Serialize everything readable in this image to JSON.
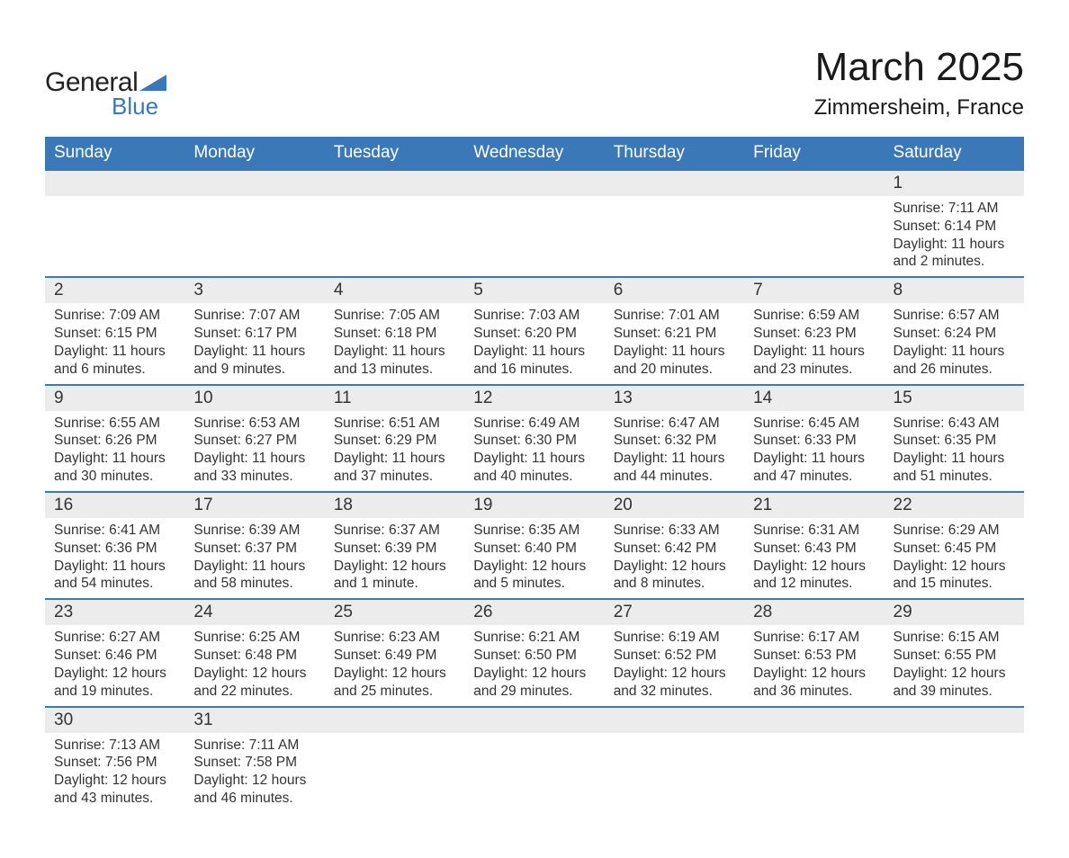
{
  "logo": {
    "text_general": "General",
    "text_blue": "Blue",
    "accent_color": "#3b78b8"
  },
  "header": {
    "title": "March 2025",
    "location": "Zimmersheim, France"
  },
  "colors": {
    "header_bg": "#3b78b8",
    "header_text": "#ffffff",
    "row_border": "#3b78b8",
    "daynum_bg": "#ececec",
    "body_text": "#333333",
    "page_bg": "#ffffff"
  },
  "typography": {
    "title_fontsize_pt": 33,
    "location_fontsize_pt": 18,
    "weekday_fontsize_pt": 14,
    "daynum_fontsize_pt": 14,
    "cell_fontsize_pt": 12
  },
  "calendar": {
    "weekdays": [
      "Sunday",
      "Monday",
      "Tuesday",
      "Wednesday",
      "Thursday",
      "Friday",
      "Saturday"
    ],
    "labels": {
      "sunrise": "Sunrise",
      "sunset": "Sunset",
      "daylight": "Daylight"
    },
    "leading_blanks": 6,
    "days": [
      {
        "n": 1,
        "sunrise": "7:11 AM",
        "sunset": "6:14 PM",
        "daylight": "11 hours and 2 minutes."
      },
      {
        "n": 2,
        "sunrise": "7:09 AM",
        "sunset": "6:15 PM",
        "daylight": "11 hours and 6 minutes."
      },
      {
        "n": 3,
        "sunrise": "7:07 AM",
        "sunset": "6:17 PM",
        "daylight": "11 hours and 9 minutes."
      },
      {
        "n": 4,
        "sunrise": "7:05 AM",
        "sunset": "6:18 PM",
        "daylight": "11 hours and 13 minutes."
      },
      {
        "n": 5,
        "sunrise": "7:03 AM",
        "sunset": "6:20 PM",
        "daylight": "11 hours and 16 minutes."
      },
      {
        "n": 6,
        "sunrise": "7:01 AM",
        "sunset": "6:21 PM",
        "daylight": "11 hours and 20 minutes."
      },
      {
        "n": 7,
        "sunrise": "6:59 AM",
        "sunset": "6:23 PM",
        "daylight": "11 hours and 23 minutes."
      },
      {
        "n": 8,
        "sunrise": "6:57 AM",
        "sunset": "6:24 PM",
        "daylight": "11 hours and 26 minutes."
      },
      {
        "n": 9,
        "sunrise": "6:55 AM",
        "sunset": "6:26 PM",
        "daylight": "11 hours and 30 minutes."
      },
      {
        "n": 10,
        "sunrise": "6:53 AM",
        "sunset": "6:27 PM",
        "daylight": "11 hours and 33 minutes."
      },
      {
        "n": 11,
        "sunrise": "6:51 AM",
        "sunset": "6:29 PM",
        "daylight": "11 hours and 37 minutes."
      },
      {
        "n": 12,
        "sunrise": "6:49 AM",
        "sunset": "6:30 PM",
        "daylight": "11 hours and 40 minutes."
      },
      {
        "n": 13,
        "sunrise": "6:47 AM",
        "sunset": "6:32 PM",
        "daylight": "11 hours and 44 minutes."
      },
      {
        "n": 14,
        "sunrise": "6:45 AM",
        "sunset": "6:33 PM",
        "daylight": "11 hours and 47 minutes."
      },
      {
        "n": 15,
        "sunrise": "6:43 AM",
        "sunset": "6:35 PM",
        "daylight": "11 hours and 51 minutes."
      },
      {
        "n": 16,
        "sunrise": "6:41 AM",
        "sunset": "6:36 PM",
        "daylight": "11 hours and 54 minutes."
      },
      {
        "n": 17,
        "sunrise": "6:39 AM",
        "sunset": "6:37 PM",
        "daylight": "11 hours and 58 minutes."
      },
      {
        "n": 18,
        "sunrise": "6:37 AM",
        "sunset": "6:39 PM",
        "daylight": "12 hours and 1 minute."
      },
      {
        "n": 19,
        "sunrise": "6:35 AM",
        "sunset": "6:40 PM",
        "daylight": "12 hours and 5 minutes."
      },
      {
        "n": 20,
        "sunrise": "6:33 AM",
        "sunset": "6:42 PM",
        "daylight": "12 hours and 8 minutes."
      },
      {
        "n": 21,
        "sunrise": "6:31 AM",
        "sunset": "6:43 PM",
        "daylight": "12 hours and 12 minutes."
      },
      {
        "n": 22,
        "sunrise": "6:29 AM",
        "sunset": "6:45 PM",
        "daylight": "12 hours and 15 minutes."
      },
      {
        "n": 23,
        "sunrise": "6:27 AM",
        "sunset": "6:46 PM",
        "daylight": "12 hours and 19 minutes."
      },
      {
        "n": 24,
        "sunrise": "6:25 AM",
        "sunset": "6:48 PM",
        "daylight": "12 hours and 22 minutes."
      },
      {
        "n": 25,
        "sunrise": "6:23 AM",
        "sunset": "6:49 PM",
        "daylight": "12 hours and 25 minutes."
      },
      {
        "n": 26,
        "sunrise": "6:21 AM",
        "sunset": "6:50 PM",
        "daylight": "12 hours and 29 minutes."
      },
      {
        "n": 27,
        "sunrise": "6:19 AM",
        "sunset": "6:52 PM",
        "daylight": "12 hours and 32 minutes."
      },
      {
        "n": 28,
        "sunrise": "6:17 AM",
        "sunset": "6:53 PM",
        "daylight": "12 hours and 36 minutes."
      },
      {
        "n": 29,
        "sunrise": "6:15 AM",
        "sunset": "6:55 PM",
        "daylight": "12 hours and 39 minutes."
      },
      {
        "n": 30,
        "sunrise": "7:13 AM",
        "sunset": "7:56 PM",
        "daylight": "12 hours and 43 minutes."
      },
      {
        "n": 31,
        "sunrise": "7:11 AM",
        "sunset": "7:58 PM",
        "daylight": "12 hours and 46 minutes."
      }
    ]
  }
}
